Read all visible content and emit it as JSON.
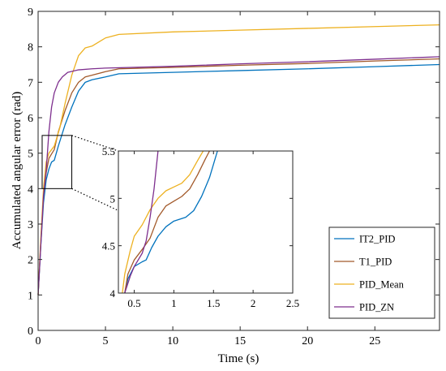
{
  "chart_data": {
    "type": "line",
    "xlabel": "Time (s)",
    "ylabel": "Accumulated angular error (rad)",
    "xlim": [
      0,
      29.8
    ],
    "ylim": [
      0,
      9
    ],
    "xticks": [
      0,
      5,
      10,
      15,
      20,
      25
    ],
    "yticks": [
      0,
      1,
      2,
      3,
      4,
      5,
      6,
      7,
      8,
      9
    ],
    "grid": false,
    "legend_position": "bottom-right",
    "series": [
      {
        "name": "IT2_PID",
        "color": "#0072BD",
        "points": [
          [
            0,
            1
          ],
          [
            0.2,
            2.4
          ],
          [
            0.4,
            3.6
          ],
          [
            0.6,
            4.25
          ],
          [
            0.8,
            4.55
          ],
          [
            1,
            4.75
          ],
          [
            1.2,
            4.8
          ],
          [
            1.5,
            5.2
          ],
          [
            2,
            5.8
          ],
          [
            2.5,
            6.3
          ],
          [
            3,
            6.75
          ],
          [
            3.5,
            7.0
          ],
          [
            4,
            7.07
          ],
          [
            5,
            7.15
          ],
          [
            6,
            7.24
          ],
          [
            10,
            7.28
          ],
          [
            15,
            7.33
          ],
          [
            20,
            7.38
          ],
          [
            25,
            7.44
          ],
          [
            29.8,
            7.5
          ]
        ]
      },
      {
        "name": "T1_PID",
        "color": "#A2592A",
        "points": [
          [
            0,
            1
          ],
          [
            0.2,
            2.5
          ],
          [
            0.4,
            3.8
          ],
          [
            0.6,
            4.45
          ],
          [
            0.8,
            4.85
          ],
          [
            1,
            4.98
          ],
          [
            1.2,
            5.1
          ],
          [
            1.5,
            5.6
          ],
          [
            2,
            6.2
          ],
          [
            2.5,
            6.7
          ],
          [
            3,
            7.0
          ],
          [
            3.5,
            7.15
          ],
          [
            4,
            7.2
          ],
          [
            5,
            7.3
          ],
          [
            6,
            7.38
          ],
          [
            10,
            7.42
          ],
          [
            15,
            7.48
          ],
          [
            20,
            7.53
          ],
          [
            25,
            7.6
          ],
          [
            29.8,
            7.66
          ]
        ]
      },
      {
        "name": "PID_Mean",
        "color": "#EDB120",
        "points": [
          [
            0,
            1
          ],
          [
            0.2,
            2.6
          ],
          [
            0.4,
            4.0
          ],
          [
            0.6,
            4.75
          ],
          [
            0.8,
            5.0
          ],
          [
            1,
            5.1
          ],
          [
            1.2,
            5.2
          ],
          [
            1.6,
            5.7
          ],
          [
            2,
            6.4
          ],
          [
            2.5,
            7.2
          ],
          [
            3,
            7.75
          ],
          [
            3.5,
            7.97
          ],
          [
            4,
            8.02
          ],
          [
            5,
            8.25
          ],
          [
            6,
            8.35
          ],
          [
            10,
            8.42
          ],
          [
            15,
            8.47
          ],
          [
            20,
            8.52
          ],
          [
            25,
            8.57
          ],
          [
            29.8,
            8.62
          ]
        ]
      },
      {
        "name": "PID_ZN",
        "color": "#7E2F8E",
        "points": [
          [
            0,
            1
          ],
          [
            0.2,
            2.4
          ],
          [
            0.4,
            3.8
          ],
          [
            0.6,
            4.5
          ],
          [
            0.8,
            5.6
          ],
          [
            1,
            6.3
          ],
          [
            1.2,
            6.7
          ],
          [
            1.5,
            7.0
          ],
          [
            1.8,
            7.15
          ],
          [
            2.2,
            7.28
          ],
          [
            3,
            7.35
          ],
          [
            4,
            7.38
          ],
          [
            5,
            7.4
          ],
          [
            10,
            7.45
          ],
          [
            15,
            7.52
          ],
          [
            20,
            7.58
          ],
          [
            25,
            7.65
          ],
          [
            29.8,
            7.72
          ]
        ]
      }
    ],
    "inset": {
      "xlim": [
        0.3,
        2.5
      ],
      "ylim": [
        4,
        5.5
      ],
      "xticks": [
        0.5,
        1,
        1.5,
        2,
        2.5
      ],
      "xtick_labels": [
        "0.5",
        "1",
        "1.5",
        "2",
        "2.5"
      ],
      "yticks": [
        4,
        4.5,
        5,
        5.5
      ],
      "ytick_labels": [
        "4",
        "4.5",
        "5",
        "5.5"
      ],
      "zoom_region": {
        "x": [
          0.3,
          2.5
        ],
        "y": [
          4,
          5.5
        ]
      },
      "series": [
        {
          "name": "IT2_PID",
          "points": [
            [
              0.38,
              4.0
            ],
            [
              0.42,
              4.15
            ],
            [
              0.5,
              4.28
            ],
            [
              0.6,
              4.33
            ],
            [
              0.65,
              4.35
            ],
            [
              0.72,
              4.48
            ],
            [
              0.8,
              4.6
            ],
            [
              0.9,
              4.7
            ],
            [
              1.0,
              4.76
            ],
            [
              1.15,
              4.8
            ],
            [
              1.25,
              4.87
            ],
            [
              1.35,
              5.02
            ],
            [
              1.45,
              5.22
            ],
            [
              1.55,
              5.5
            ]
          ]
        },
        {
          "name": "T1_PID",
          "points": [
            [
              0.38,
              4.0
            ],
            [
              0.42,
              4.2
            ],
            [
              0.5,
              4.35
            ],
            [
              0.6,
              4.46
            ],
            [
              0.7,
              4.58
            ],
            [
              0.8,
              4.8
            ],
            [
              0.9,
              4.92
            ],
            [
              1.0,
              4.97
            ],
            [
              1.1,
              5.02
            ],
            [
              1.2,
              5.1
            ],
            [
              1.3,
              5.25
            ],
            [
              1.4,
              5.42
            ],
            [
              1.45,
              5.5
            ]
          ]
        },
        {
          "name": "PID_Mean",
          "points": [
            [
              0.35,
              4.0
            ],
            [
              0.38,
              4.2
            ],
            [
              0.45,
              4.45
            ],
            [
              0.5,
              4.6
            ],
            [
              0.6,
              4.72
            ],
            [
              0.7,
              4.88
            ],
            [
              0.8,
              5.0
            ],
            [
              0.9,
              5.08
            ],
            [
              1.0,
              5.12
            ],
            [
              1.1,
              5.16
            ],
            [
              1.2,
              5.25
            ],
            [
              1.3,
              5.4
            ],
            [
              1.37,
              5.5
            ]
          ]
        },
        {
          "name": "PID_ZN",
          "points": [
            [
              0.38,
              4.0
            ],
            [
              0.45,
              4.18
            ],
            [
              0.5,
              4.28
            ],
            [
              0.6,
              4.42
            ],
            [
              0.65,
              4.55
            ],
            [
              0.7,
              4.8
            ],
            [
              0.75,
              5.1
            ],
            [
              0.8,
              5.5
            ]
          ]
        }
      ]
    }
  }
}
